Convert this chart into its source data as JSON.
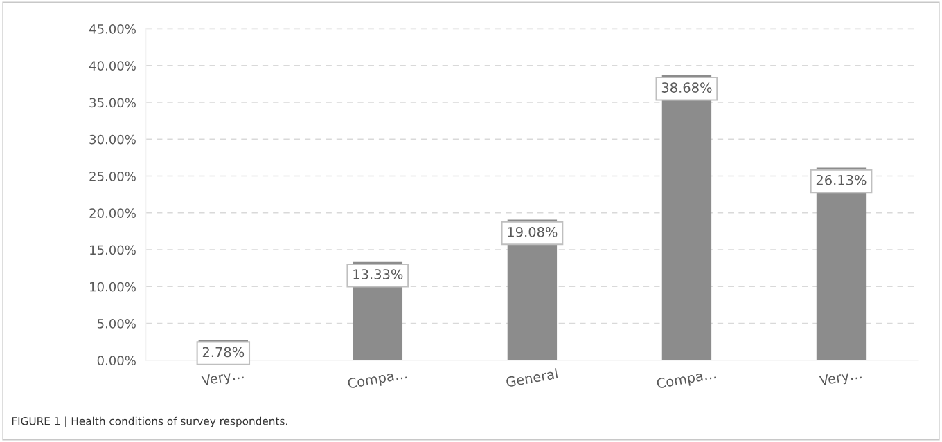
{
  "chart_data": {
    "type": "bar",
    "categories": [
      "Very…",
      "Compa…",
      "General",
      "Compa…",
      "Very…"
    ],
    "values": [
      2.78,
      13.33,
      19.08,
      38.68,
      26.13
    ],
    "value_labels": [
      "2.78%",
      "13.33%",
      "19.08%",
      "38.68%",
      "26.13%"
    ],
    "color": "#8c8c8c",
    "ylim": [
      0,
      45
    ],
    "yticks": [
      {
        "value": 0,
        "label": "0.00%"
      },
      {
        "value": 5,
        "label": "5.00%"
      },
      {
        "value": 10,
        "label": "10.00%"
      },
      {
        "value": 15,
        "label": "15.00%"
      },
      {
        "value": 20,
        "label": "20.00%"
      },
      {
        "value": 25,
        "label": "25.00%"
      },
      {
        "value": 30,
        "label": "30.00%"
      },
      {
        "value": 35,
        "label": "35.00%"
      },
      {
        "value": 40,
        "label": "40.00%"
      },
      {
        "value": 45,
        "label": "45.00%"
      }
    ],
    "grid": "y",
    "annotations": [
      "FIGURE 1 | Health conditions of survey respondents."
    ]
  }
}
